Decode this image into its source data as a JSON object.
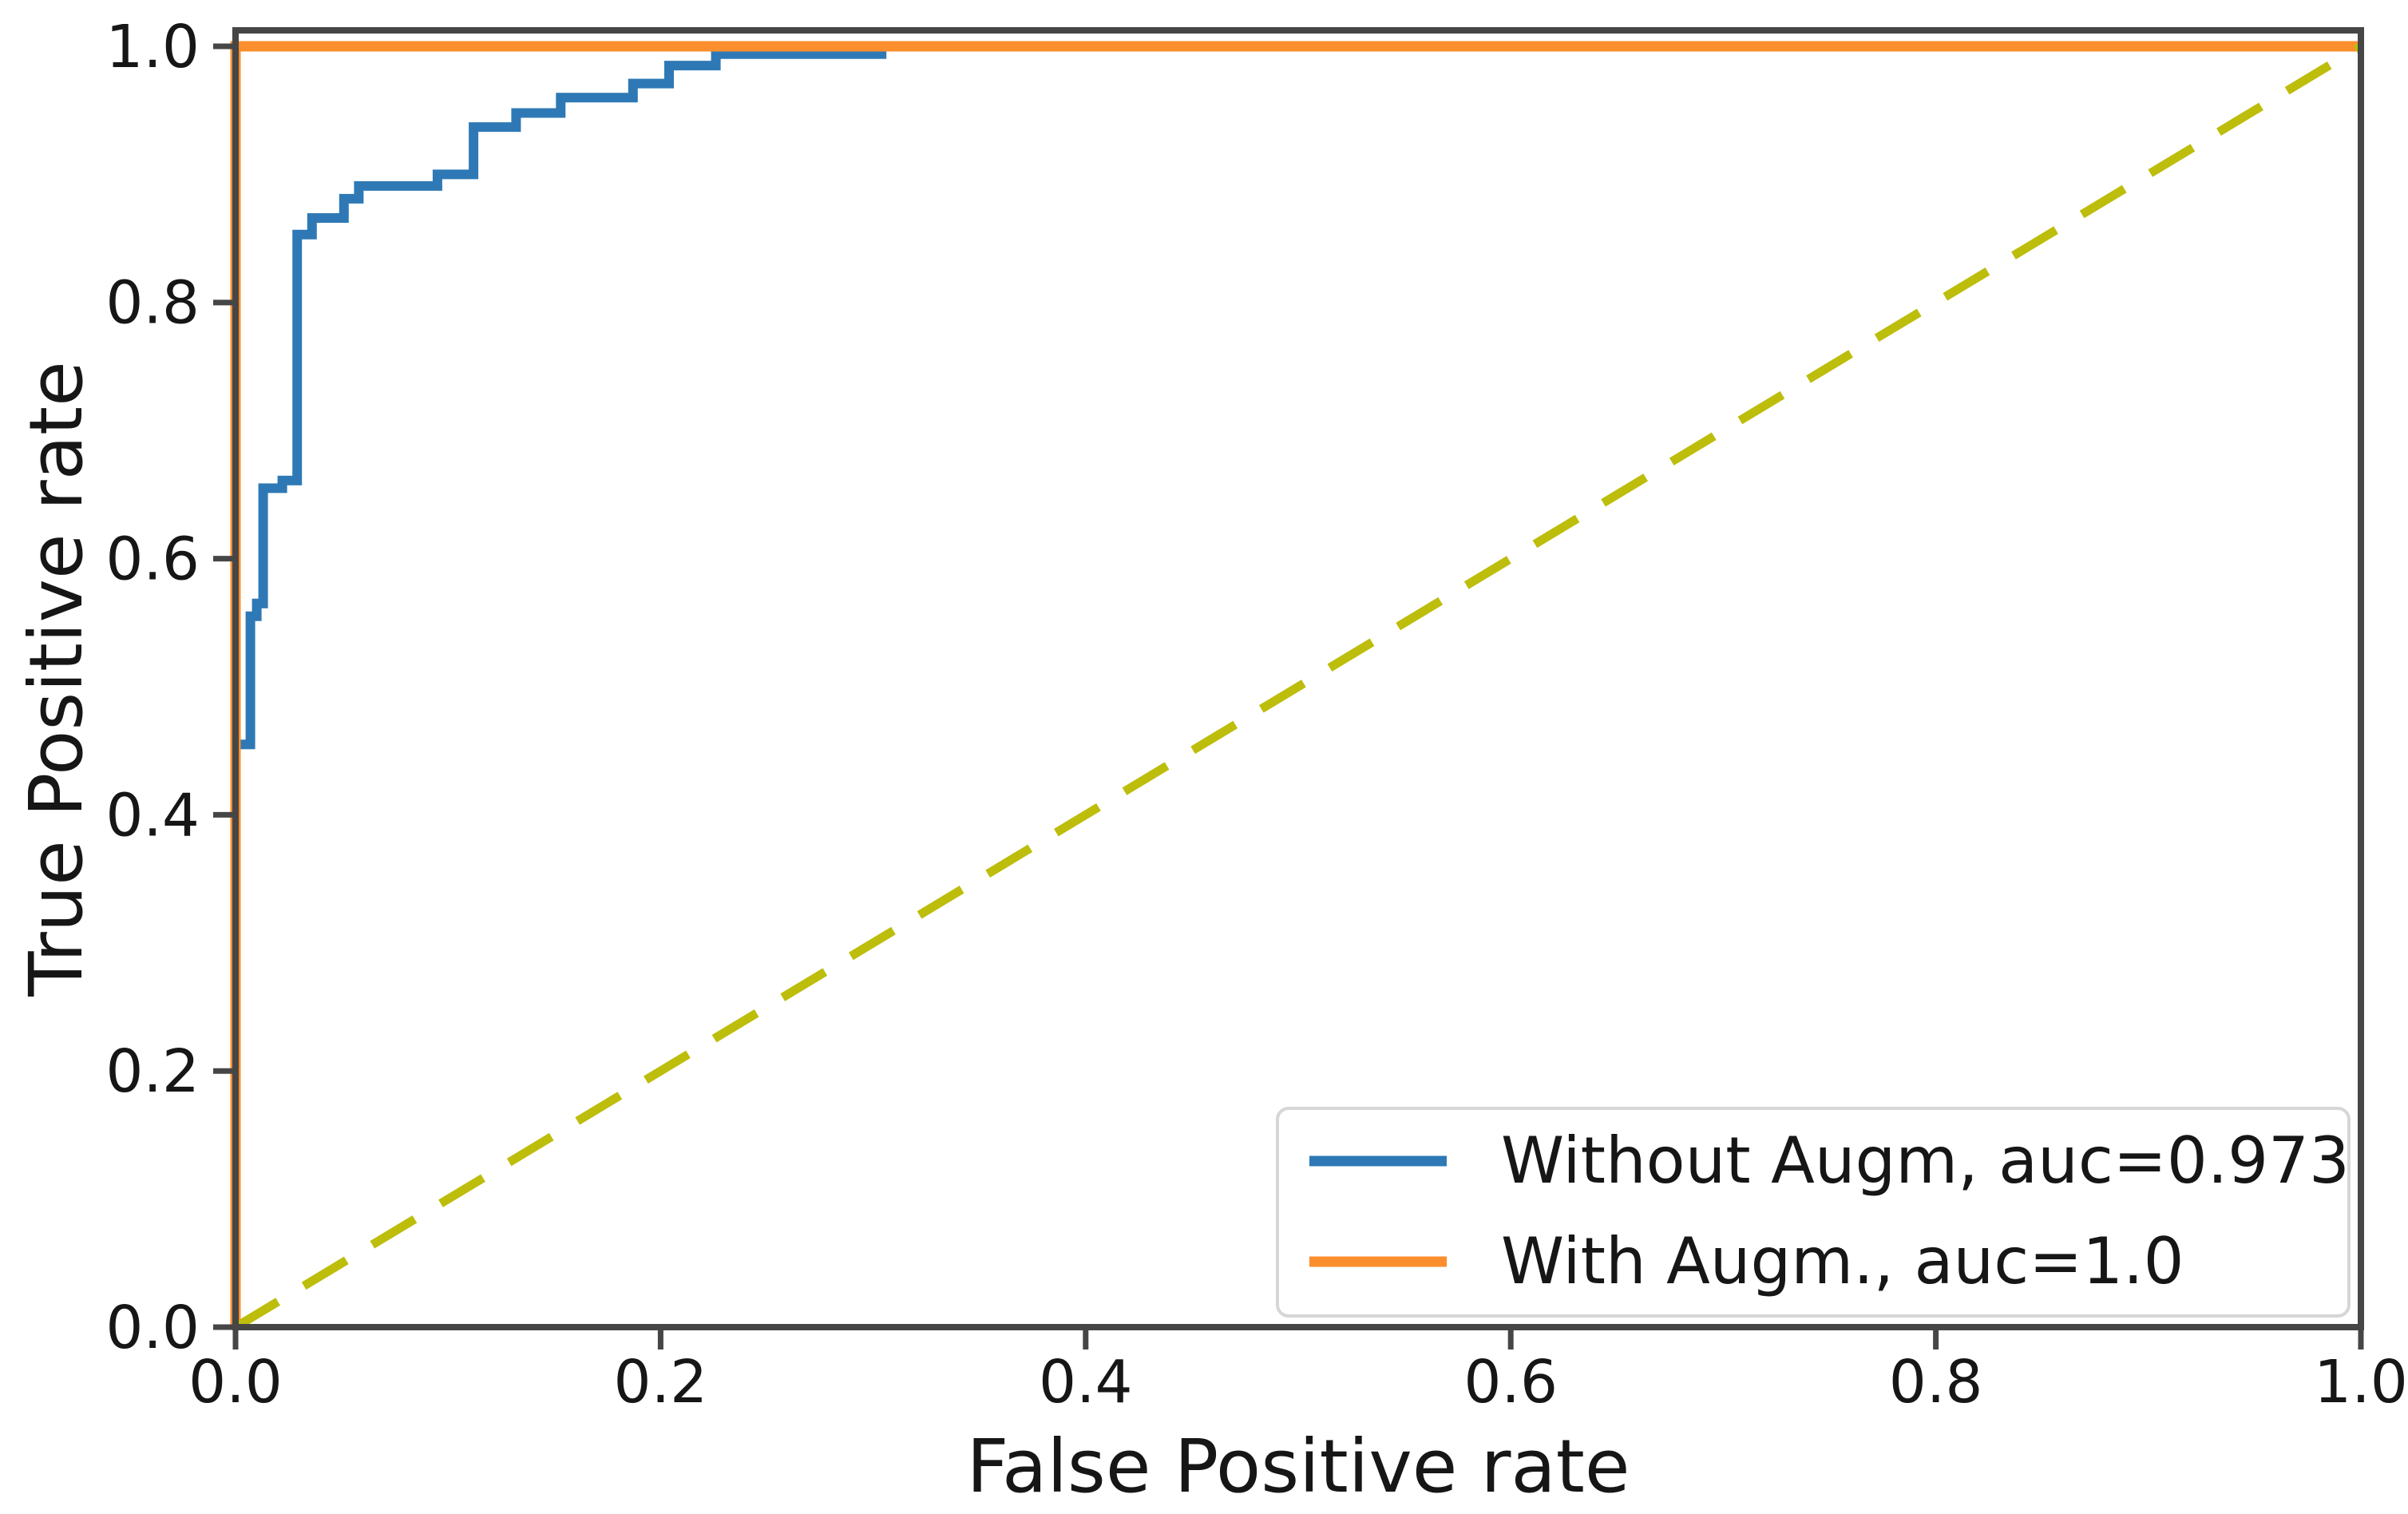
{
  "chart_data": {
    "type": "line",
    "title": "",
    "xlabel": "False Positive rate",
    "ylabel": "True Positive rate",
    "xlim": [
      0.0,
      1.0
    ],
    "ylim": [
      0.0,
      1.0125
    ],
    "x_ticks": [
      0.0,
      0.2,
      0.4,
      0.6,
      0.8,
      1.0
    ],
    "x_tick_labels": [
      "0.0",
      "0.2",
      "0.4",
      "0.6",
      "0.8",
      "1.0"
    ],
    "y_ticks": [
      0.0,
      0.2,
      0.4,
      0.6,
      0.8,
      1.0
    ],
    "y_tick_labels": [
      "0.0",
      "0.2",
      "0.4",
      "0.6",
      "0.8",
      "1.0"
    ],
    "grid": false,
    "legend_position": "lower right",
    "series": [
      {
        "id": "without_augm",
        "name": "Without Augm, auc=0.973",
        "auc": 0.973,
        "color": "#2e79b5",
        "line_style": "solid",
        "line_width": 12,
        "in_legend": true,
        "points": [
          [
            0.0,
            0.0
          ],
          [
            0.0,
            0.455
          ],
          [
            0.007,
            0.455
          ],
          [
            0.007,
            0.555
          ],
          [
            0.01,
            0.555
          ],
          [
            0.01,
            0.565
          ],
          [
            0.013,
            0.565
          ],
          [
            0.013,
            0.655
          ],
          [
            0.022,
            0.655
          ],
          [
            0.022,
            0.661
          ],
          [
            0.029,
            0.661
          ],
          [
            0.029,
            0.853
          ],
          [
            0.036,
            0.853
          ],
          [
            0.036,
            0.866
          ],
          [
            0.051,
            0.866
          ],
          [
            0.051,
            0.881
          ],
          [
            0.058,
            0.881
          ],
          [
            0.058,
            0.891
          ],
          [
            0.095,
            0.891
          ],
          [
            0.095,
            0.9
          ],
          [
            0.112,
            0.9
          ],
          [
            0.112,
            0.937
          ],
          [
            0.132,
            0.937
          ],
          [
            0.132,
            0.948
          ],
          [
            0.153,
            0.948
          ],
          [
            0.153,
            0.96
          ],
          [
            0.187,
            0.96
          ],
          [
            0.187,
            0.971
          ],
          [
            0.204,
            0.971
          ],
          [
            0.204,
            0.985
          ],
          [
            0.226,
            0.985
          ],
          [
            0.226,
            0.994
          ],
          [
            0.304,
            0.994
          ],
          [
            0.304,
            1.0
          ],
          [
            1.0,
            1.0
          ]
        ]
      },
      {
        "id": "with_augm",
        "name": "With Augm., auc=1.0",
        "auc": 1.0,
        "color": "#fb8e2d",
        "line_style": "solid",
        "line_width": 13,
        "in_legend": true,
        "points": [
          [
            0.0,
            0.0
          ],
          [
            0.0,
            1.0
          ],
          [
            1.0,
            1.0
          ]
        ]
      },
      {
        "id": "chance_diagonal",
        "name": "chance",
        "color": "#bdbd0c",
        "line_style": "dashed",
        "dash": [
          62,
          38
        ],
        "line_width": 11,
        "in_legend": false,
        "points": [
          [
            0.0,
            0.0
          ],
          [
            1.0,
            1.0
          ]
        ]
      }
    ]
  },
  "legend": {
    "entries": [
      {
        "label": "Without Augm, auc=0.973",
        "color": "#2e79b5"
      },
      {
        "label": "With Augm., auc=1.0",
        "color": "#fb8e2d"
      }
    ],
    "border_color": "#d6d6d6",
    "background": "#ffffff"
  },
  "axis": {
    "spine_color": "#464646",
    "tick_color": "#464646",
    "text_color": "#161616"
  }
}
